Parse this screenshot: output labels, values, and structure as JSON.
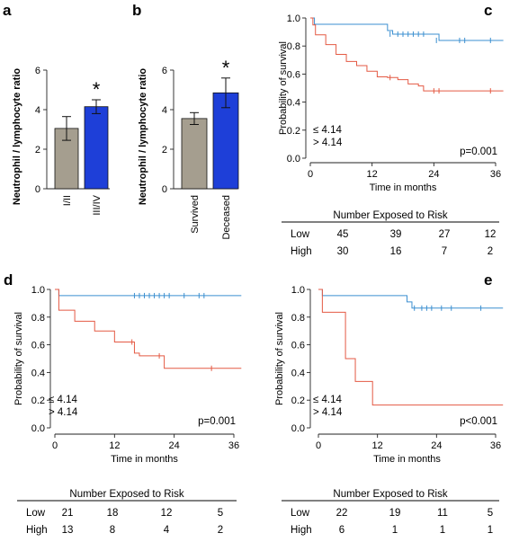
{
  "chart_data": [
    {
      "panel": "a",
      "type": "bar",
      "ylabel": "Neutrophil / lymphocyte ratio",
      "ylim": [
        0,
        6
      ],
      "yticks": [
        0,
        2,
        4,
        6
      ],
      "categories": [
        "I/II",
        "III/IV"
      ],
      "values": [
        3.05,
        4.15
      ],
      "errors": [
        0.6,
        0.35
      ],
      "colors": [
        "#a59e8f",
        "#1e3fd8"
      ],
      "annotations": [
        {
          "category": "III/IV",
          "text": "*"
        }
      ]
    },
    {
      "panel": "b",
      "type": "bar",
      "ylabel": "Neutrophil / lymphocyte ratio",
      "ylim": [
        0,
        6
      ],
      "yticks": [
        0,
        2,
        4,
        6
      ],
      "categories": [
        "Survived",
        "Deceased"
      ],
      "values": [
        3.55,
        4.85
      ],
      "errors": [
        0.3,
        0.75
      ],
      "colors": [
        "#a59e8f",
        "#1e3fd8"
      ],
      "annotations": [
        {
          "category": "Deceased",
          "text": "*"
        }
      ]
    },
    {
      "panel": "c",
      "type": "line",
      "subtype": "kaplan-meier",
      "ylabel": "Probability of survival",
      "xlabel": "Time in months",
      "xlim": [
        -1,
        38
      ],
      "ylim": [
        0,
        1
      ],
      "xticks": [
        0,
        12,
        24,
        36
      ],
      "yticks": [
        "0.0",
        "0.2",
        "0.4",
        "0.6",
        "0.8",
        "1.0"
      ],
      "pvalue": "p=0.001",
      "series": [
        {
          "name": "≤ 4.14",
          "color": "#3b8fd0",
          "x": [
            0,
            0.8,
            13,
            15,
            16,
            24,
            25,
            37.5
          ],
          "y": [
            1.0,
            0.955,
            0.955,
            0.91,
            0.885,
            0.885,
            0.84,
            0.84
          ],
          "censored": [
            [
              15.5,
              0.885
            ],
            [
              17,
              0.885
            ],
            [
              18,
              0.885
            ],
            [
              19,
              0.885
            ],
            [
              20,
              0.885
            ],
            [
              21,
              0.885
            ],
            [
              22,
              0.885
            ],
            [
              24.5,
              0.84
            ],
            [
              29,
              0.84
            ],
            [
              30,
              0.84
            ],
            [
              35,
              0.84
            ]
          ]
        },
        {
          "name": "> 4.14",
          "color": "#e45a44",
          "x": [
            0,
            0.5,
            1,
            3,
            5,
            7,
            9,
            11,
            13,
            15,
            17,
            19,
            21,
            22,
            37.5
          ],
          "y": [
            1.0,
            0.95,
            0.88,
            0.81,
            0.74,
            0.69,
            0.66,
            0.62,
            0.58,
            0.575,
            0.56,
            0.53,
            0.515,
            0.48,
            0.48
          ],
          "censored": [
            [
              15.5,
              0.575
            ],
            [
              24,
              0.48
            ],
            [
              25,
              0.48
            ],
            [
              35,
              0.48
            ]
          ]
        }
      ],
      "risk_table": {
        "title": "Number Exposed to Risk",
        "rows": [
          {
            "label": "Low",
            "values": [
              "45",
              "39",
              "27",
              "12"
            ]
          },
          {
            "label": "High",
            "values": [
              "30",
              "16",
              "7",
              "2"
            ]
          }
        ]
      }
    },
    {
      "panel": "d",
      "type": "line",
      "subtype": "kaplan-meier",
      "ylabel": "Probability of survival",
      "xlabel": "Time in months",
      "xlim": [
        -1,
        38
      ],
      "ylim": [
        0,
        1
      ],
      "xticks": [
        0,
        12,
        24,
        36
      ],
      "yticks": [
        "0.0",
        "0.2",
        "0.4",
        "0.6",
        "0.8",
        "1.0"
      ],
      "pvalue": "p=0.001",
      "series": [
        {
          "name": "≤ 4.14",
          "color": "#3b8fd0",
          "x": [
            0,
            0.8,
            37.5
          ],
          "y": [
            1.0,
            0.955,
            0.955
          ],
          "censored": [
            [
              16,
              0.955
            ],
            [
              17,
              0.955
            ],
            [
              18,
              0.955
            ],
            [
              19,
              0.955
            ],
            [
              20,
              0.955
            ],
            [
              21,
              0.955
            ],
            [
              22,
              0.955
            ],
            [
              23,
              0.955
            ],
            [
              26,
              0.955
            ],
            [
              29,
              0.955
            ],
            [
              30,
              0.955
            ]
          ]
        },
        {
          "name": "> 4.14",
          "color": "#e45a44",
          "x": [
            0,
            0.8,
            4,
            8,
            12,
            16,
            17,
            22,
            37.5
          ],
          "y": [
            1.0,
            0.85,
            0.77,
            0.7,
            0.62,
            0.54,
            0.52,
            0.43,
            0.43
          ],
          "censored": [
            [
              15.5,
              0.62
            ],
            [
              21,
              0.52
            ],
            [
              31.5,
              0.43
            ]
          ]
        }
      ],
      "risk_table": {
        "title": "Number Exposed to Risk",
        "rows": [
          {
            "label": "Low",
            "values": [
              "21",
              "18",
              "12",
              "5"
            ]
          },
          {
            "label": "High",
            "values": [
              "13",
              "8",
              "4",
              "2"
            ]
          }
        ]
      }
    },
    {
      "panel": "e",
      "type": "line",
      "subtype": "kaplan-meier",
      "ylabel": "Probability of survival",
      "xlabel": "Time in months",
      "xlim": [
        -1,
        38
      ],
      "ylim": [
        0,
        1
      ],
      "xticks": [
        0,
        12,
        24,
        36
      ],
      "yticks": [
        "0.0",
        "0.2",
        "0.4",
        "0.6",
        "0.8",
        "1.0"
      ],
      "pvalue": "p<0.001",
      "series": [
        {
          "name": "≤ 4.14",
          "color": "#3b8fd0",
          "x": [
            0,
            0.8,
            18,
            19,
            37.5
          ],
          "y": [
            1.0,
            0.955,
            0.91,
            0.865,
            0.865
          ],
          "censored": [
            [
              19.5,
              0.865
            ],
            [
              21,
              0.865
            ],
            [
              22,
              0.865
            ],
            [
              23,
              0.865
            ],
            [
              25,
              0.865
            ],
            [
              27,
              0.865
            ],
            [
              33,
              0.865
            ]
          ]
        },
        {
          "name": "> 4.14",
          "color": "#e45a44",
          "x": [
            0,
            0.8,
            5.5,
            7.5,
            11,
            37.5
          ],
          "y": [
            1.0,
            0.835,
            0.5,
            0.335,
            0.165,
            0.165
          ],
          "censored": []
        }
      ],
      "risk_table": {
        "title": "Number Exposed to Risk",
        "rows": [
          {
            "label": "Low",
            "values": [
              "22",
              "19",
              "11",
              "5"
            ]
          },
          {
            "label": "High",
            "values": [
              "6",
              "1",
              "1",
              "1"
            ]
          }
        ]
      }
    }
  ],
  "panel_labels": [
    "a",
    "b",
    "c",
    "d",
    "e"
  ],
  "legend_colors": {
    "low": "#1f4fc1",
    "high": "#e0412a"
  }
}
